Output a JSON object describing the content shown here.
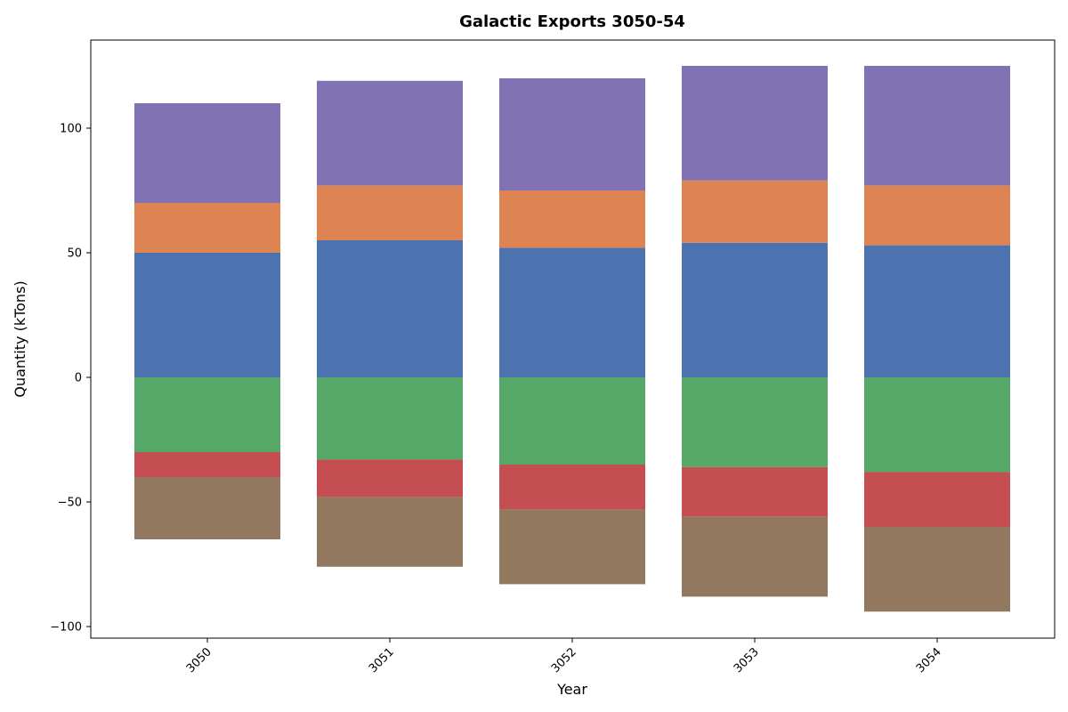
{
  "chart_data": {
    "type": "bar",
    "stacked": true,
    "diverging": true,
    "title": "Galactic Exports 3050-54",
    "xlabel": "Year",
    "ylabel": "Quantity (kTons)",
    "categories": [
      "3050",
      "3051",
      "3052",
      "3053",
      "3054"
    ],
    "ylim": [
      -105,
      133
    ],
    "yticks": [
      -100,
      -50,
      0,
      50,
      100
    ],
    "ytick_labels": [
      "−100",
      "−50",
      "0",
      "50",
      "100"
    ],
    "grid": false,
    "legend": "none",
    "x_tick_rotation": 45,
    "positive_series": [
      {
        "values": [
          50,
          55,
          52,
          54,
          53
        ],
        "color": "#4c72b0"
      },
      {
        "values": [
          20,
          22,
          23,
          25,
          24
        ],
        "color": "#dd8452"
      },
      {
        "values": [
          40,
          42,
          45,
          46,
          48
        ],
        "color": "#8172b3"
      }
    ],
    "negative_series": [
      {
        "values": [
          -30,
          -33,
          -35,
          -36,
          -38
        ],
        "color": "#55a868"
      },
      {
        "values": [
          -10,
          -15,
          -18,
          -20,
          -22
        ],
        "color": "#c44e52"
      },
      {
        "values": [
          -25,
          -28,
          -30,
          -32,
          -34
        ],
        "color": "#937860"
      }
    ]
  }
}
